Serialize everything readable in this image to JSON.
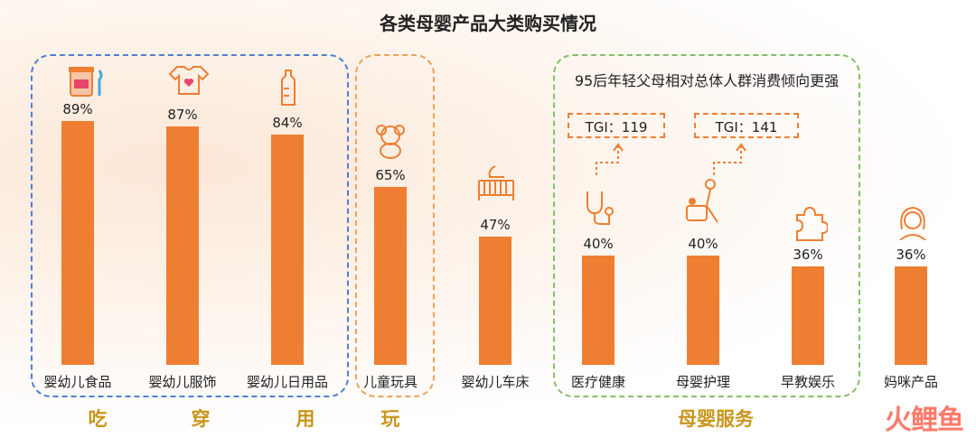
{
  "chart_data": {
    "type": "bar",
    "title": "各类母婴产品大类购买情况",
    "categories": [
      "婴幼儿食品",
      "婴幼儿服饰",
      "婴幼儿日用品",
      "儿童玩具",
      "婴幼儿车床",
      "医疗健康",
      "母婴护理",
      "早教娱乐",
      "妈咪产品"
    ],
    "values": [
      89,
      87,
      84,
      65,
      47,
      40,
      40,
      36,
      36
    ],
    "value_labels": [
      "89%",
      "87%",
      "84%",
      "65%",
      "47%",
      "40%",
      "40%",
      "36%",
      "36%"
    ],
    "ylim": [
      0,
      100
    ],
    "bar_color": "#ee7f32",
    "groups": [
      {
        "label": "吃",
        "color": "#4f7fcf"
      },
      {
        "label": "穿"
      },
      {
        "label": "用"
      },
      {
        "label": "玩",
        "color": "#f0a25c"
      },
      {
        "label": "母婴服务",
        "color": "#84c06a"
      }
    ],
    "annotations": {
      "note": "95后年轻父母相对总体人群消费倾向更强",
      "tgi": [
        "TGI：119",
        "TGI：141"
      ]
    }
  },
  "logo_text": "火鲤鱼"
}
